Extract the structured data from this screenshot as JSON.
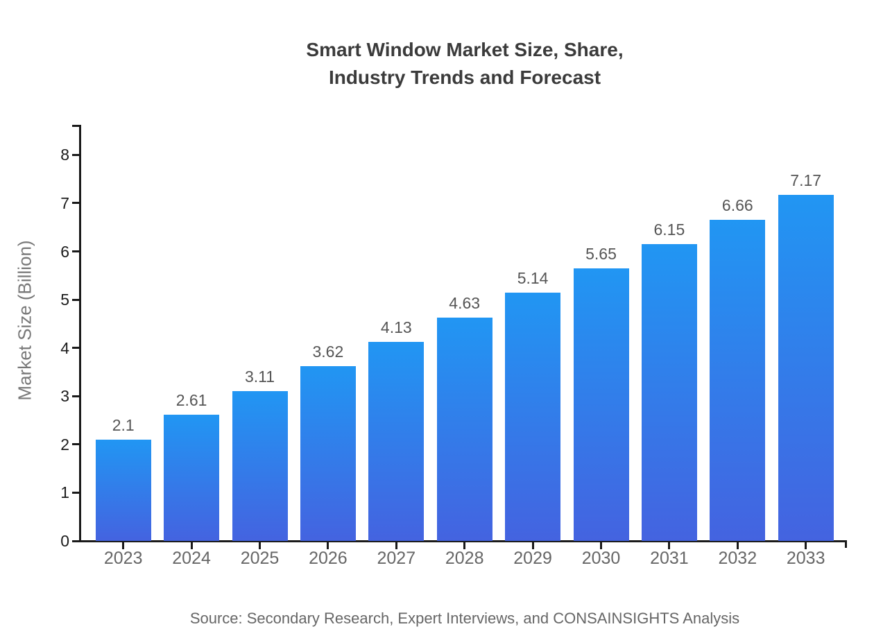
{
  "title": {
    "line1": "Smart Window Market Size, Share,",
    "line2": "Industry Trends and Forecast"
  },
  "source": "Source: Secondary Research, Expert Interviews, and CONSAINSIGHTS Analysis",
  "chart_data": {
    "type": "bar",
    "title": "Smart Window Market Size, Share, Industry Trends and Forecast",
    "categories": [
      "2023",
      "2024",
      "2025",
      "2026",
      "2027",
      "2028",
      "2029",
      "2030",
      "2031",
      "2032",
      "2033"
    ],
    "values": [
      2.1,
      2.61,
      3.11,
      3.62,
      4.13,
      4.63,
      5.14,
      5.65,
      6.15,
      6.66,
      7.17
    ],
    "value_labels": [
      "2.1",
      "2.61",
      "3.11",
      "3.62",
      "4.13",
      "4.63",
      "5.14",
      "5.65",
      "6.15",
      "6.66",
      "7.17"
    ],
    "xlabel": "",
    "ylabel": "Market Size (Billion)",
    "ylim": [
      0,
      8
    ],
    "yticks": [
      0,
      1,
      2,
      3,
      4,
      5,
      6,
      7,
      8
    ],
    "grid": false,
    "legend": false,
    "bar_color_top": "#2196f3",
    "bar_color_bottom": "#4463e0",
    "axis_color": "#1a1a1a"
  }
}
